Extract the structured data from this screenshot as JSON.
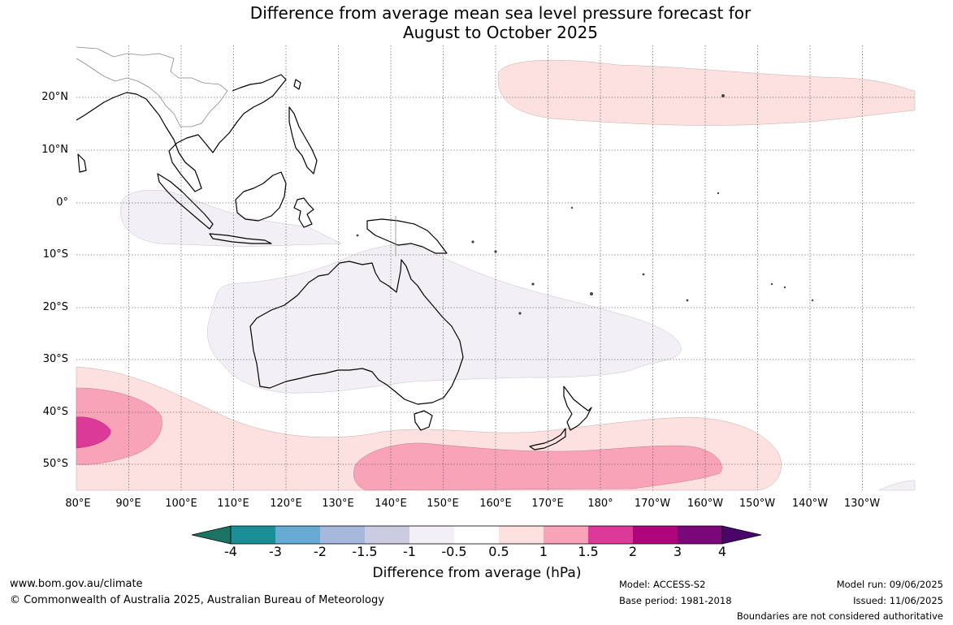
{
  "title_line1": "Difference from average mean sea level pressure forecast for",
  "title_line2": "August to October 2025",
  "lat_labels": [
    "20°N",
    "10°N",
    "0°",
    "10°S",
    "20°S",
    "30°S",
    "40°S",
    "50°S"
  ],
  "lon_labels": [
    "80°E",
    "90°E",
    "100°E",
    "110°E",
    "120°E",
    "130°E",
    "140°E",
    "150°E",
    "160°E",
    "170°E",
    "180°",
    "170°W",
    "160°W",
    "150°W",
    "140°W",
    "130°W"
  ],
  "colorbar": {
    "ticks": [
      "-4",
      "-3",
      "-2",
      "-1.5",
      "-1",
      "-0.5",
      "0.5",
      "1",
      "1.5",
      "2",
      "3",
      "4"
    ],
    "colors": [
      "#1b7463",
      "#1a9096",
      "#67aad3",
      "#a6b8dc",
      "#cbcbe2",
      "#f2eff5",
      "#ffffff",
      "#fde0e0",
      "#f9a3b8",
      "#dc3a98",
      "#b0067d",
      "#7b0878",
      "#4a0568"
    ],
    "label": "Difference from average (hPa)"
  },
  "footer": {
    "website": "www.bom.gov.au/climate",
    "copyright": "© Commonwealth of Australia 2025, Australian Bureau of Meteorology",
    "model": "Model: ACCESS-S2",
    "base_period": "Base period: 1981-2018",
    "model_run": "Model run: 09/06/2025",
    "issued": "Issued: 11/06/2025",
    "disclaimer": "Boundaries are not considered authoritative"
  }
}
